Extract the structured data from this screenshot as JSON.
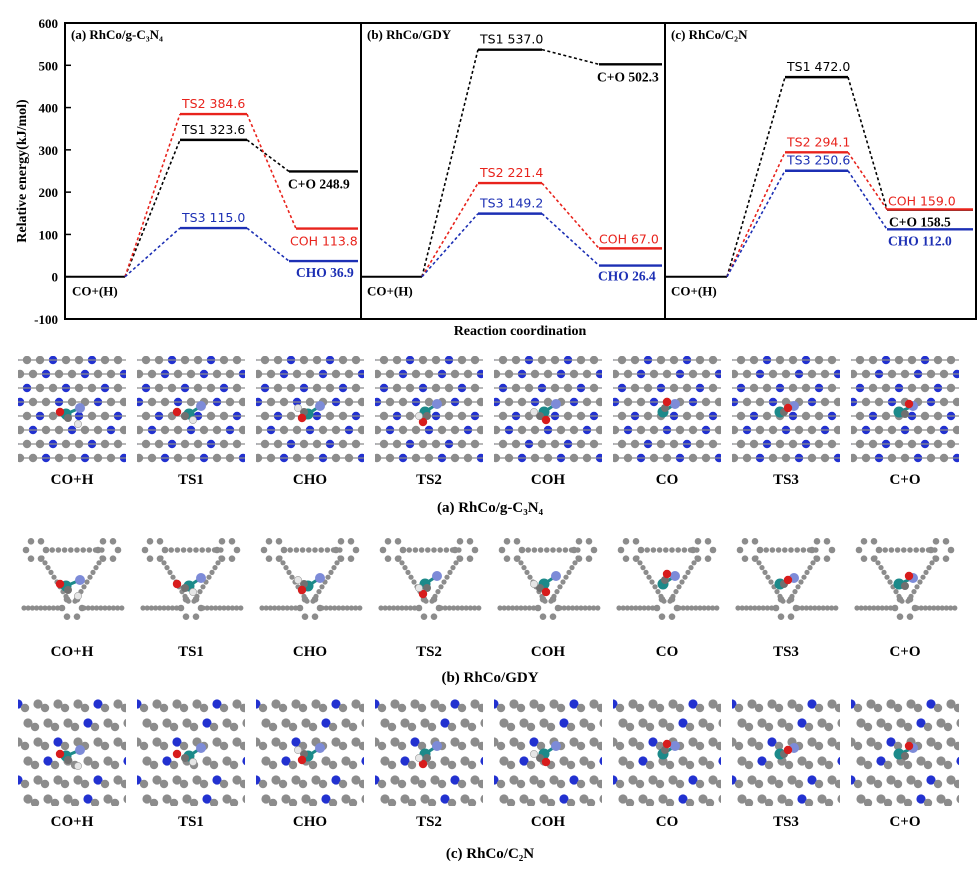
{
  "chart_data": [
    {
      "type": "line",
      "panel_label": "(a) RhCo/g-C₃N₄",
      "ylabel": "Relative energy(kJ/mol)",
      "ylim": [
        -100,
        600
      ],
      "yticks": [
        "-100",
        "0",
        "100",
        "200",
        "300",
        "400",
        "500",
        "600"
      ],
      "initial_state": {
        "label": "CO+(H)",
        "value": 0
      },
      "series": [
        {
          "name": "TS1",
          "color": "#000000",
          "ts_label": "TS1 323.6",
          "ts_value": 323.6,
          "final_label": "C+O 248.9",
          "final_value": 248.9
        },
        {
          "name": "TS2",
          "color": "#e8231c",
          "ts_label": "TS2 384.6",
          "ts_value": 384.6,
          "final_label": "COH 113.8",
          "final_value": 113.8
        },
        {
          "name": "TS3",
          "color": "#1c2fb4",
          "ts_label": "TS3 115.0",
          "ts_value": 115.0,
          "final_label": "CHO 36.9",
          "final_value": 36.9
        }
      ]
    },
    {
      "type": "line",
      "panel_label": "(b) RhCo/GDY",
      "ylim": [
        -100,
        600
      ],
      "initial_state": {
        "label": "CO+(H)",
        "value": 0
      },
      "series": [
        {
          "name": "TS1",
          "color": "#000000",
          "ts_label": "TS1 537.0",
          "ts_value": 537.0,
          "final_label": "C+O 502.3",
          "final_value": 502.3
        },
        {
          "name": "TS2",
          "color": "#e8231c",
          "ts_label": "TS2 221.4",
          "ts_value": 221.4,
          "final_label": "COH 67.0",
          "final_value": 67.0
        },
        {
          "name": "TS3",
          "color": "#1c2fb4",
          "ts_label": "TS3 149.2",
          "ts_value": 149.2,
          "final_label": "CHO 26.4",
          "final_value": 26.4
        }
      ]
    },
    {
      "type": "line",
      "panel_label": "(c) RhCo/C₂N",
      "ylim": [
        -100,
        600
      ],
      "initial_state": {
        "label": "CO+(H)",
        "value": 0
      },
      "series": [
        {
          "name": "TS1",
          "color": "#000000",
          "ts_label": "TS1 472.0",
          "ts_value": 472.0,
          "final_label": "C+O 158.5",
          "final_value": 158.5
        },
        {
          "name": "TS2",
          "color": "#e8231c",
          "ts_label": "TS2 294.1",
          "ts_value": 294.1,
          "final_label": "COH 159.0",
          "final_value": 159.0
        },
        {
          "name": "TS3",
          "color": "#1c2fb4",
          "ts_label": "TS3 250.6",
          "ts_value": 250.6,
          "final_label": "CHO 112.0",
          "final_value": 112.0
        }
      ]
    }
  ],
  "xlabel": "Reaction coordination",
  "structure_rows": [
    {
      "caption": "(a) RhCo/g-C₃N₄",
      "support": "gcn",
      "labels": [
        "CO+H",
        "TS1",
        "CHO",
        "TS2",
        "COH",
        "CO",
        "TS3",
        "C+O"
      ]
    },
    {
      "caption": "(b) RhCo/GDY",
      "support": "gdy",
      "labels": [
        "CO+H",
        "TS1",
        "CHO",
        "TS2",
        "COH",
        "CO",
        "TS3",
        "C+O"
      ]
    },
    {
      "caption": "(c) RhCo/C₂N",
      "support": "c2n",
      "labels": [
        "CO+H",
        "TS1",
        "CHO",
        "TS2",
        "COH",
        "CO",
        "TS3",
        "C+O"
      ]
    }
  ],
  "colors": {
    "black": "#000000",
    "red": "#e8231c",
    "blue": "#1c2fb4",
    "carbon": "#8c8c8c",
    "nitrogen": "#2231d0",
    "rh": "#1c8a8a",
    "co": "#7d8bd8",
    "oxygen": "#d81c1c",
    "hydrogen": "#e6e6e6"
  }
}
